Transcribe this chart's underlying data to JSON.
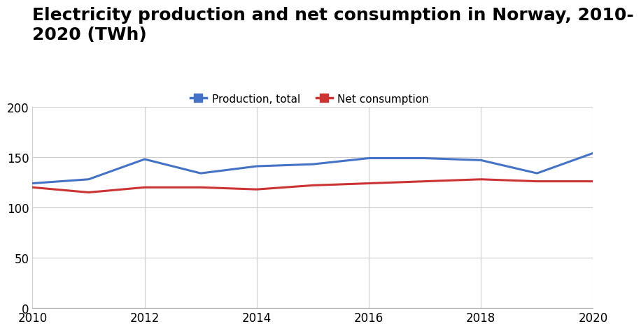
{
  "title_line1": "Electricity production and net consumption in Norway, 2010-",
  "title_line2": "2020 (TWh)",
  "years": [
    2010,
    2011,
    2012,
    2013,
    2014,
    2015,
    2016,
    2017,
    2018,
    2019,
    2020
  ],
  "production": [
    124,
    128,
    148,
    134,
    141,
    143,
    149,
    149,
    147,
    134,
    154
  ],
  "net_consumption": [
    120,
    115,
    120,
    120,
    118,
    122,
    124,
    126,
    128,
    126,
    126
  ],
  "production_color": "#4472c4",
  "net_consumption_color": "#cc3333",
  "production_label": "Production, total",
  "net_consumption_label": "Net consumption",
  "ylim": [
    0,
    200
  ],
  "yticks": [
    0,
    50,
    100,
    150,
    200
  ],
  "xlim": [
    2010,
    2020
  ],
  "xticks": [
    2010,
    2012,
    2014,
    2016,
    2018,
    2020
  ],
  "background_color": "#ffffff",
  "grid_color": "#cccccc",
  "title_fontsize": 18,
  "legend_fontsize": 11,
  "tick_fontsize": 12,
  "line_width": 2.2
}
